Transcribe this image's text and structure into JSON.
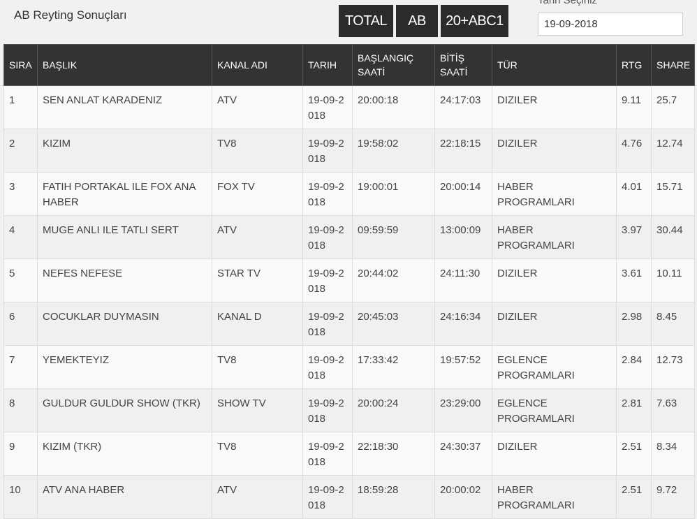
{
  "header": {
    "title": "AB Reyting Sonuçları",
    "buttons": [
      "TOTAL",
      "AB",
      "20+ABC1"
    ],
    "date_label": "Tarih Seçiniz",
    "date_value": "19-09-2018"
  },
  "table": {
    "columns": [
      "SIRA",
      "BAŞLIK",
      "KANAL ADI",
      "TARIH",
      "BAŞLANGIÇ SAATİ",
      "BİTİŞ SAATİ",
      "TÜR",
      "RTG",
      "SHARE"
    ],
    "rows": [
      [
        "1",
        "SEN ANLAT KARADENIZ",
        "ATV",
        "19-09-2018",
        "20:00:18",
        "24:17:03",
        "DIZILER",
        "9.11",
        "25.7"
      ],
      [
        "2",
        "KIZIM",
        "TV8",
        "19-09-2018",
        "19:58:02",
        "22:18:15",
        "DIZILER",
        "4.76",
        "12.74"
      ],
      [
        "3",
        "FATIH PORTAKAL ILE FOX ANA HABER",
        "FOX TV",
        "19-09-2018",
        "19:00:01",
        "20:00:14",
        "HABER PROGRAMLARI",
        "4.01",
        "15.71"
      ],
      [
        "4",
        "MUGE ANLI ILE TATLI SERT",
        "ATV",
        "19-09-2018",
        "09:59:59",
        "13:00:09",
        "HABER PROGRAMLARI",
        "3.97",
        "30.44"
      ],
      [
        "5",
        "NEFES NEFESE",
        "STAR TV",
        "19-09-2018",
        "20:44:02",
        "24:11:30",
        "DIZILER",
        "3.61",
        "10.11"
      ],
      [
        "6",
        "COCUKLAR DUYMASIN",
        "KANAL D",
        "19-09-2018",
        "20:45:03",
        "24:16:34",
        "DIZILER",
        "2.98",
        "8.45"
      ],
      [
        "7",
        "YEMEKTEYIZ",
        "TV8",
        "19-09-2018",
        "17:33:42",
        "19:57:52",
        "EGLENCE PROGRAMLARI",
        "2.84",
        "12.73"
      ],
      [
        "8",
        "GULDUR GULDUR SHOW (TKR)",
        "SHOW TV",
        "19-09-2018",
        "20:00:24",
        "23:29:00",
        "EGLENCE PROGRAMLARI",
        "2.81",
        "7.63"
      ],
      [
        "9",
        "KIZIM (TKR)",
        "TV8",
        "19-09-2018",
        "22:18:30",
        "24:30:37",
        "DIZILER",
        "2.51",
        "8.34"
      ],
      [
        "10",
        "ATV ANA HABER",
        "ATV",
        "19-09-2018",
        "18:59:28",
        "20:00:02",
        "HABER PROGRAMLARI",
        "2.51",
        "9.72"
      ]
    ]
  }
}
